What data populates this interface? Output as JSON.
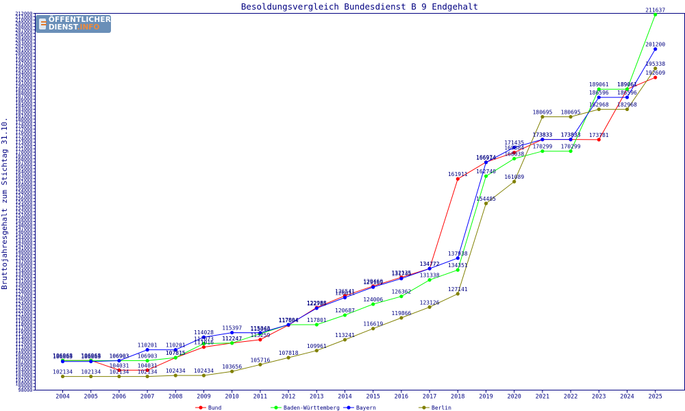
{
  "chart_data": {
    "type": "line",
    "title": "Besoldungsvergleich Bundesdienst B 9 Endgehalt",
    "ylabel": "Bruttojahresgehalt zum Stichtag 31.10.",
    "xlabel": "",
    "categories": [
      "2004",
      "2005",
      "2006",
      "2007",
      "2008",
      "2009",
      "2010",
      "2011",
      "2012",
      "2013",
      "2014",
      "2015",
      "2016",
      "2017",
      "2018",
      "2019",
      "2020",
      "2021",
      "2022",
      "2023",
      "2024",
      "2025"
    ],
    "ylim": [
      98000,
      212000
    ],
    "ytick_step": 1000,
    "grid": false,
    "legend_position": "bottom",
    "series": [
      {
        "name": "Bund",
        "color": "#ff0000",
        "values": [
          106968,
          106968,
          104031,
          104031,
          107815,
          111016,
          112247,
          113259,
          117664,
          122988,
          126541,
          129460,
          132135,
          134772,
          161911,
          166974,
          169884,
          173833,
          173833,
          173781,
          189061,
          192609
        ]
      },
      {
        "name": "Baden-Württemberg",
        "color": "#00ff00",
        "values": [
          106968,
          106968,
          106903,
          106903,
          107815,
          112073,
          112247,
          115060,
          117804,
          117801,
          120687,
          124006,
          126362,
          131338,
          134351,
          162740,
          168038,
          170299,
          170299,
          189061,
          189061,
          211637
        ]
      },
      {
        "name": "Bayern",
        "color": "#0000ff",
        "values": [
          106663,
          106663,
          106903,
          110201,
          110201,
          114028,
          115397,
          115343,
          117804,
          122785,
          126011,
          129169,
          131745,
          134772,
          137938,
          166914,
          171435,
          173833,
          173833,
          186596,
          186596,
          201200
        ]
      },
      {
        "name": "Berlin",
        "color": "#808000",
        "values": [
          102134,
          102134,
          102134,
          102134,
          102434,
          102434,
          103656,
          105716,
          107818,
          109961,
          113241,
          116619,
          119866,
          123126,
          127141,
          154485,
          161089,
          180695,
          180695,
          182968,
          182968,
          195338
        ]
      }
    ]
  },
  "logo": {
    "line1": "ÖFFENTLICHER",
    "line2a": "DIENST",
    "line2b": ".INFO"
  }
}
